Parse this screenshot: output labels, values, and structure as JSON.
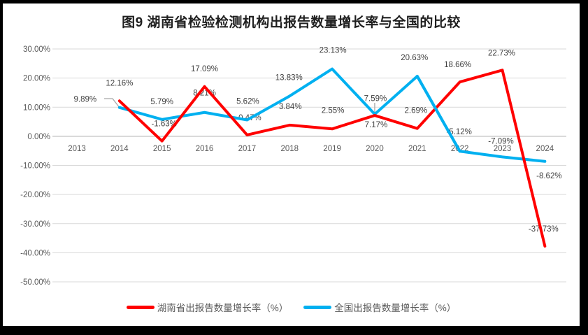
{
  "title": "图9 湖南省检验检测机构出报告数量增长率与全国的比较",
  "chart_data": {
    "type": "line",
    "categories": [
      "2013",
      "2014",
      "2015",
      "2016",
      "2017",
      "2018",
      "2019",
      "2020",
      "2021",
      "2022",
      "2023",
      "2024"
    ],
    "series": [
      {
        "name": "湖南省出报告数量增长率（%）",
        "color": "#FF0000",
        "values": [
          null,
          12.16,
          -1.63,
          17.09,
          0.47,
          3.84,
          2.55,
          7.17,
          2.69,
          18.66,
          22.73,
          -37.73
        ],
        "labels": [
          null,
          "12.16%",
          "-1.63%",
          "17.09%",
          "0.47%",
          "3.84%",
          "2.55%",
          "7.17%",
          "2.69%",
          "18.66%",
          "22.73%",
          "-37.73%"
        ]
      },
      {
        "name": "全国出报告数量增长率（%）",
        "color": "#00B0F0",
        "values": [
          null,
          9.89,
          5.79,
          8.21,
          5.62,
          13.83,
          23.13,
          7.59,
          20.63,
          -5.12,
          -7.09,
          -8.62
        ],
        "labels": [
          null,
          "9.89%",
          "5.79%",
          "8.21%",
          "5.62%",
          "13.83%",
          "23.13%",
          "7.59%",
          "20.63%",
          "-5.12%",
          "-7.09%",
          "-8.62%"
        ]
      }
    ],
    "ylim": [
      -50,
      30
    ],
    "ytick_values": [
      30,
      20,
      10,
      0,
      -10,
      -20,
      -30,
      -40,
      -50
    ],
    "ytick_labels": [
      "30.00%",
      "20.00%",
      "10.00%",
      "0.00%",
      "-10.00%",
      "-20.00%",
      "-30.00%",
      "-40.00%",
      "-50.00%"
    ],
    "grid": true,
    "legend_position": "bottom"
  },
  "colors": {
    "page_bg": "#000000",
    "panel_bg": "#FFFFFF",
    "gridline": "#D9D9D9",
    "zero_line": "#BFBFBF",
    "axis_text": "#595959",
    "label_text": "#404040",
    "leader": "#A6A6A6"
  }
}
